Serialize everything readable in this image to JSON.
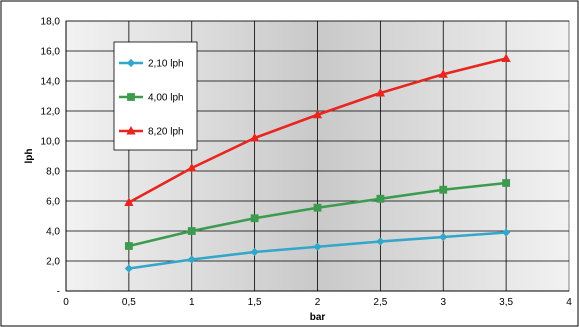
{
  "chart_data": {
    "type": "line",
    "title": "",
    "xlabel": "bar",
    "ylabel": "lph",
    "xlim": [
      0,
      4
    ],
    "ylim": [
      0,
      18
    ],
    "x_ticks": [
      0,
      0.5,
      1,
      1.5,
      2,
      2.5,
      3,
      3.5,
      4
    ],
    "x_tick_labels": [
      "0",
      "0,5",
      "1",
      "1,5",
      "2",
      "2,5",
      "3",
      "3,5",
      "4"
    ],
    "y_ticks": [
      0,
      2,
      4,
      6,
      8,
      10,
      12,
      14,
      16,
      18
    ],
    "y_tick_labels": [
      "-",
      "2,0",
      "4,0",
      "6,0",
      "8,0",
      "10,0",
      "12,0",
      "14,0",
      "16,0",
      "18,0"
    ],
    "grid": true,
    "legend_position": "top-left",
    "series": [
      {
        "name": "2,10 lph",
        "color": "#33A7C9",
        "marker": "diamond",
        "x": [
          0.5,
          1,
          1.5,
          2,
          2.5,
          3,
          3.5
        ],
        "y": [
          1.5,
          2.1,
          2.6,
          2.95,
          3.3,
          3.6,
          3.9
        ]
      },
      {
        "name": "4,00 lph",
        "color": "#3C9B4E",
        "marker": "square",
        "x": [
          0.5,
          1,
          1.5,
          2,
          2.5,
          3,
          3.5
        ],
        "y": [
          3.0,
          4.0,
          4.85,
          5.55,
          6.15,
          6.75,
          7.2
        ]
      },
      {
        "name": "8,20 lph",
        "color": "#E8251F",
        "marker": "triangle",
        "x": [
          0.5,
          1,
          1.5,
          2,
          2.5,
          3,
          3.5
        ],
        "y": [
          5.9,
          8.2,
          10.2,
          11.75,
          13.2,
          14.45,
          15.5
        ]
      }
    ]
  }
}
